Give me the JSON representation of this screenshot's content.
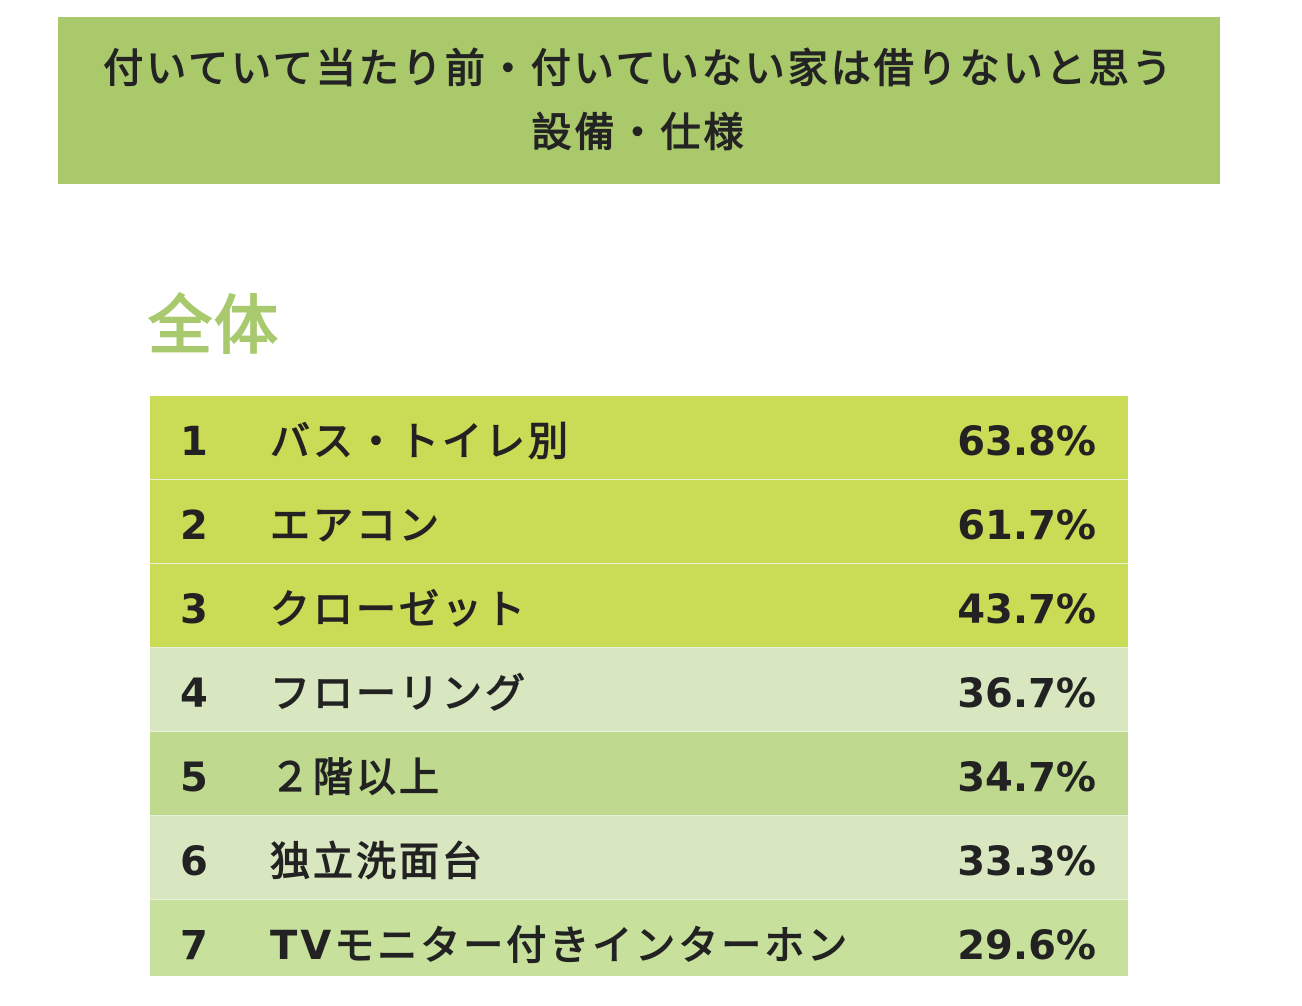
{
  "header": {
    "title": "付いていて当たり前・付いていない家は借りないと思う設備・仕様",
    "background": "#a9c96b"
  },
  "section": {
    "label": "全体",
    "color": "#a8c96e"
  },
  "chart_data": {
    "type": "table",
    "title": "付いていて当たり前・付いていない家は借りないと思う設備・仕様",
    "subtitle": "全体",
    "columns": [
      "rank",
      "item",
      "percent"
    ],
    "rows": [
      {
        "rank": "1",
        "label": "バス・トイレ別",
        "value": 63.8,
        "display": "63.8%"
      },
      {
        "rank": "2",
        "label": "エアコン",
        "value": 61.7,
        "display": "61.7%"
      },
      {
        "rank": "3",
        "label": "クローゼット",
        "value": 43.7,
        "display": "43.7%"
      },
      {
        "rank": "4",
        "label": "フローリング",
        "value": 36.7,
        "display": "36.7%"
      },
      {
        "rank": "5",
        "label": "２階以上",
        "value": 34.7,
        "display": "34.7%"
      },
      {
        "rank": "6",
        "label": "独立洗面台",
        "value": 33.3,
        "display": "33.3%"
      },
      {
        "rank": "7",
        "label": "TVモニター付きインターホン",
        "value": 29.6,
        "display": "29.6%"
      }
    ],
    "row_colors": [
      "#cadc55",
      "#cadc55",
      "#cadc55",
      "#d9e7c1",
      "#bfd98e",
      "#d9e7c1",
      "#c7e09c"
    ]
  }
}
